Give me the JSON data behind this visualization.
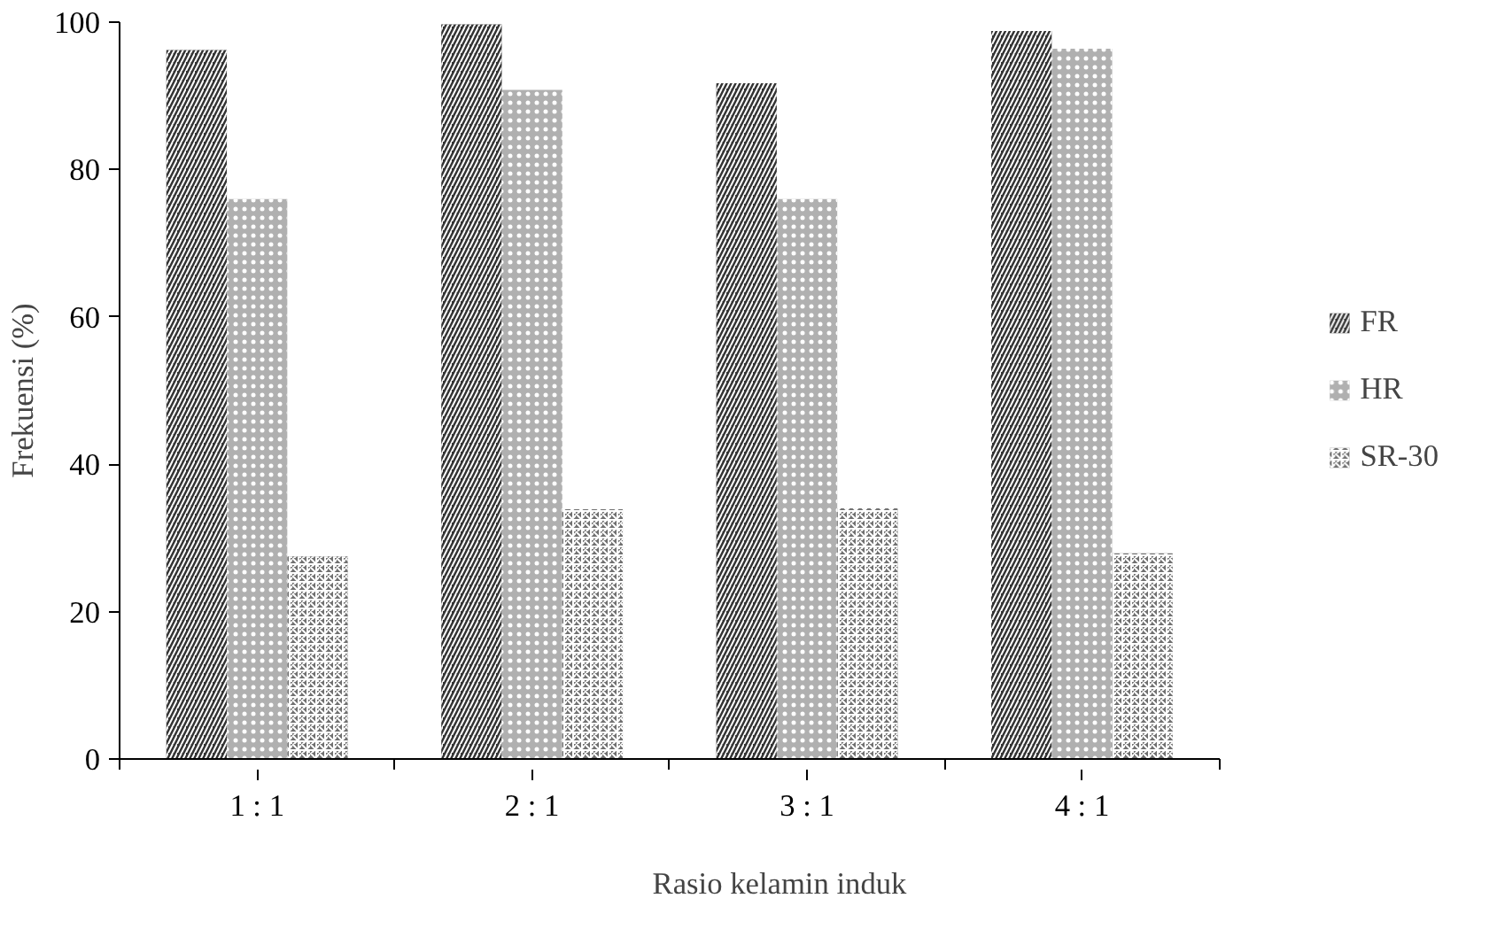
{
  "chart_data": {
    "type": "bar",
    "xlabel": "Rasio kelamin induk",
    "ylabel": "Frekuensi (%)",
    "categories": [
      "1 : 1",
      "2 : 1",
      "3 : 1",
      "4 : 1"
    ],
    "series": [
      {
        "name": "FR",
        "color": "#333333",
        "values": [
          96.2,
          99.7,
          91.7,
          98.8
        ]
      },
      {
        "name": "HR",
        "color": "#b0b0b0",
        "values": [
          76,
          90.8,
          76,
          96.4
        ]
      },
      {
        "name": "SR-30",
        "color": "#707070",
        "values": [
          27.5,
          33.9,
          34,
          27.9
        ]
      }
    ],
    "ylim": [
      0,
      100
    ],
    "yticks": [
      0,
      20,
      40,
      60,
      80,
      100
    ],
    "grid": false,
    "legend": "right"
  }
}
